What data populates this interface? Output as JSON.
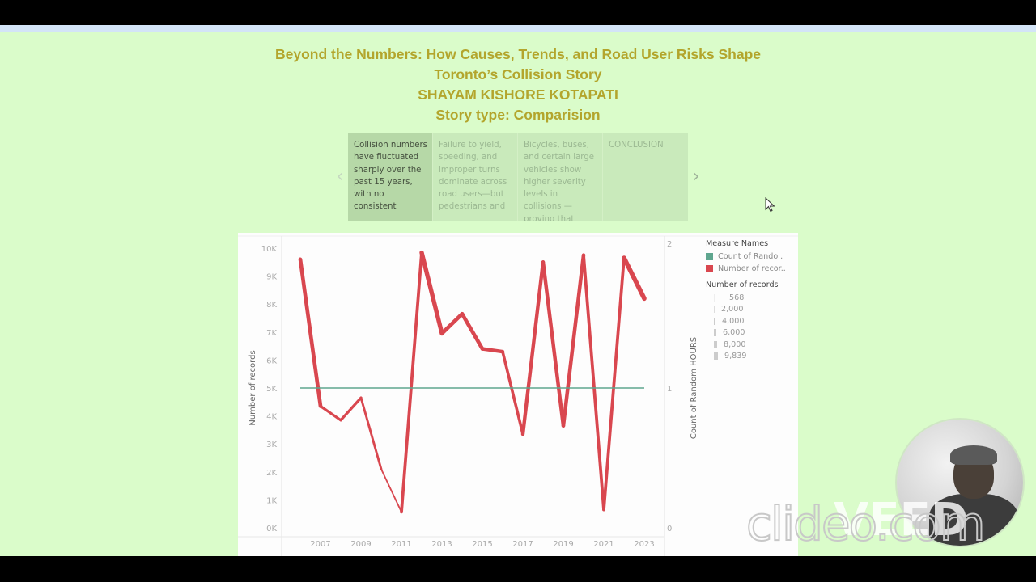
{
  "title": {
    "line1": "Beyond the Numbers: How Causes, Trends, and Road User Risks Shape",
    "line2": "Toronto’s Collision Story",
    "line3": "SHAYAM KISHORE KOTAPATI",
    "line4": "Story type: Comparision"
  },
  "story_nav": {
    "prev_icon": "‹",
    "next_icon": "›",
    "points": [
      {
        "label": "Collision numbers have fluctuated sharply over the past 15 years, with no consistent",
        "active": true
      },
      {
        "label": "Failure to yield, speeding, and improper turns dominate across road users—but pedestrians and",
        "active": false
      },
      {
        "label": "Bicycles, buses, and certain large vehicles show higher severity levels in collisions —proving that",
        "active": false
      },
      {
        "label": "CONCLUSION",
        "active": false
      }
    ]
  },
  "legend": {
    "measure_header": "Measure Names",
    "measures": [
      {
        "label": "Count of  Rando..",
        "color": "#5fa68f"
      },
      {
        "label": "Number of recor..",
        "color": "#d9474f"
      }
    ],
    "size_header": "Number of records",
    "sizes": [
      "568",
      "2,000",
      "4,000",
      "6,000",
      "8,000",
      "9,839"
    ]
  },
  "chart_data": {
    "type": "line",
    "title": "",
    "xlabel": "",
    "ylabel": "Number of records",
    "y2label": "Count of  Random HOURS",
    "ylim": [
      0,
      10000
    ],
    "y2lim": [
      0,
      2
    ],
    "x_tick_labels": [
      "2007",
      "2009",
      "2011",
      "2013",
      "2015",
      "2017",
      "2019",
      "2021",
      "2023"
    ],
    "y_tick_labels": [
      "10K",
      "9K",
      "8K",
      "7K",
      "6K",
      "5K",
      "4K",
      "3K",
      "2K",
      "1K",
      "0K"
    ],
    "y2_tick_labels": [
      "2",
      "1",
      "0"
    ],
    "grid": false,
    "legend_position": "right",
    "x": [
      2006,
      2007,
      2008,
      2009,
      2010,
      2011,
      2012,
      2013,
      2014,
      2015,
      2016,
      2017,
      2018,
      2019,
      2020,
      2021,
      2022,
      2023
    ],
    "series": [
      {
        "name": "Number of records",
        "axis": "left",
        "color": "#d9474f",
        "values": [
          9600,
          4350,
          3850,
          4650,
          2100,
          568,
          9839,
          6950,
          7650,
          6400,
          6300,
          3350,
          9500,
          3650,
          9750,
          650,
          9650,
          8200
        ]
      },
      {
        "name": "Count of  Random HOURS",
        "axis": "right",
        "color": "#5fa68f",
        "values": [
          1,
          1,
          1,
          1,
          1,
          1,
          1,
          1,
          1,
          1,
          1,
          1,
          1,
          1,
          1,
          1,
          1,
          1
        ]
      }
    ]
  },
  "overlay": {
    "watermark": "clideo.com",
    "watermark2": "VEED"
  }
}
